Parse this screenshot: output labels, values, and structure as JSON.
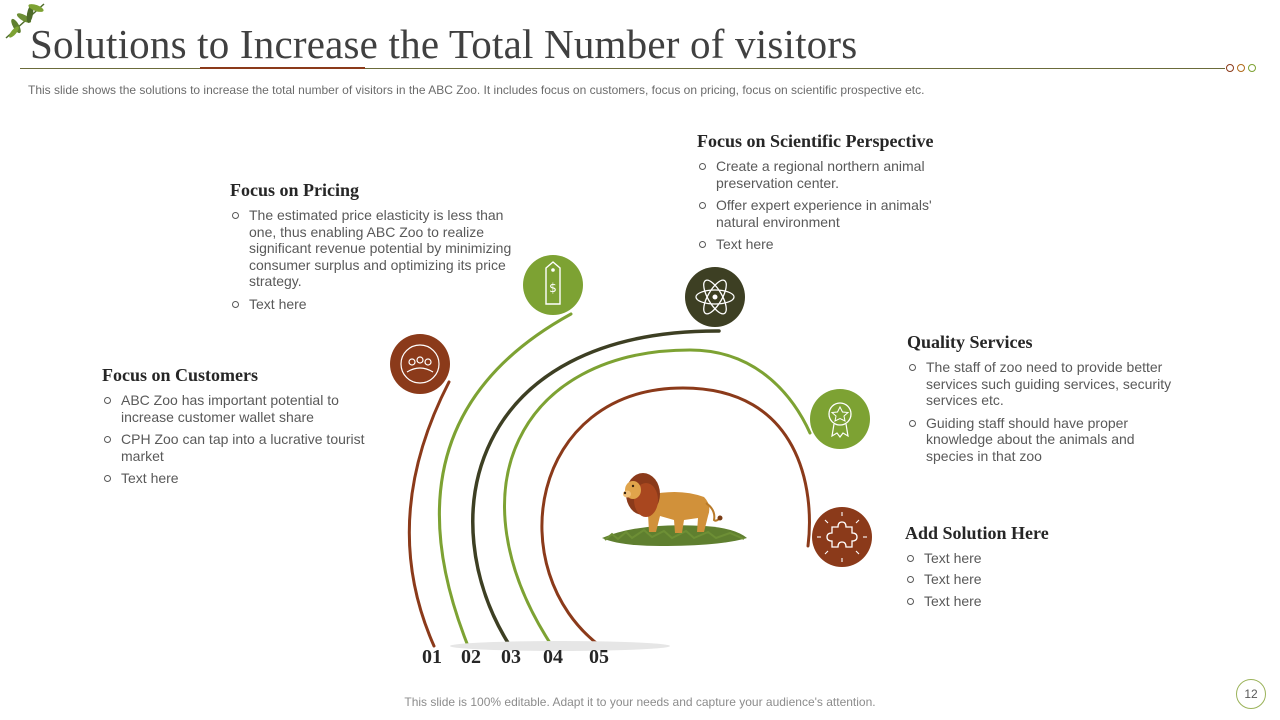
{
  "title": "Solutions to Increase the Total Number of visitors",
  "subtitle": "This slide shows the solutions to increase the total number of visitors in the ABC Zoo. It includes focus on customers, focus on pricing, focus on scientific prospective  etc.",
  "sections": [
    {
      "heading": "Focus on Customers",
      "icon": "audience-icon",
      "color": "#8B3A1A",
      "bullets": [
        "ABC Zoo has important potential to increase customer wallet share",
        "CPH Zoo can tap into a lucrative tourist market",
        "Text here"
      ]
    },
    {
      "heading": "Focus on Pricing",
      "icon": "price-tag-icon",
      "color": "#7DA233",
      "bullets": [
        "The estimated price elasticity is less than one, thus enabling ABC Zoo to realize significant revenue potential by minimizing  consumer surplus and optimizing its price strategy.",
        "Text here"
      ]
    },
    {
      "heading": "Focus on Scientific Perspective",
      "icon": "atom-icon",
      "color": "#3D3F23",
      "bullets": [
        "Create a regional northern animal preservation center.",
        "Offer expert experience in animals' natural environment",
        "Text here"
      ]
    },
    {
      "heading": "Quality Services",
      "icon": "award-badge-icon",
      "color": "#7DA233",
      "bullets": [
        "The staff of zoo need to provide better services such guiding services, security services etc.",
        "Guiding staff should have proper knowledge about the animals and species in that zoo"
      ]
    },
    {
      "heading": "Add Solution Here",
      "icon": "puzzle-icon",
      "color": "#8B3A1A",
      "bullets": [
        "Text here",
        "Text here",
        "Text here"
      ]
    }
  ],
  "numbers": [
    "01",
    "02",
    "03",
    "04",
    "05"
  ],
  "footer": "This slide is 100% editable. Adapt it to your needs and capture your audience's attention.",
  "page_number": "12"
}
